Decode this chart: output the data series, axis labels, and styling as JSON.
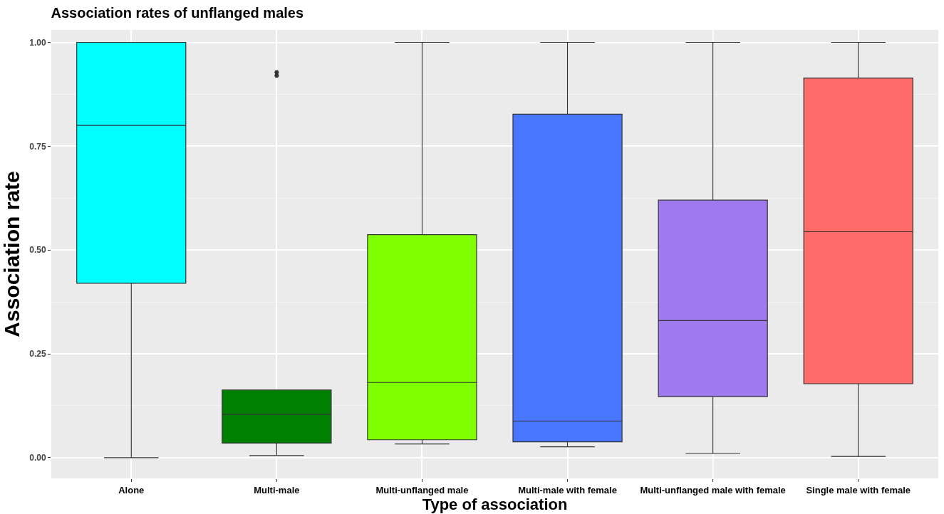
{
  "chart_data": {
    "type": "box",
    "title": "Association rates of unflanged males",
    "xlabel": "Type of association",
    "ylabel": "Association rate",
    "categories": [
      "Alone",
      "Multi-male",
      "Multi-unflanged male",
      "Multi-male with female",
      "Multi-unflanged male with female",
      "Single male with female"
    ],
    "colors": [
      "#00ffff",
      "#008000",
      "#7fff00",
      "#4876ff",
      "#9f79ee",
      "#ff6a6a"
    ],
    "boxes": [
      {
        "low": 0.0,
        "q1": 0.42,
        "median": 0.8,
        "q3": 1.0,
        "high": 1.0
      },
      {
        "low": 0.005,
        "q1": 0.035,
        "median": 0.104,
        "q3": 0.163,
        "high": 0.163,
        "outliers": [
          0.92,
          0.928
        ]
      },
      {
        "low": 0.033,
        "q1": 0.043,
        "median": 0.181,
        "q3": 0.537,
        "high": 1.0
      },
      {
        "low": 0.026,
        "q1": 0.038,
        "median": 0.088,
        "q3": 0.827,
        "high": 1.0
      },
      {
        "low": 0.01,
        "q1": 0.147,
        "median": 0.33,
        "q3": 0.62,
        "high": 1.0
      },
      {
        "low": 0.003,
        "q1": 0.178,
        "median": 0.544,
        "q3": 0.914,
        "high": 1.0
      }
    ],
    "ylim": [
      -0.05,
      1.03
    ],
    "yticks": [
      {
        "value": 0,
        "label": "0.00"
      },
      {
        "value": 0.25,
        "label": "0.25"
      },
      {
        "value": 0.5,
        "label": "0.50"
      },
      {
        "value": 0.75,
        "label": "0.75"
      },
      {
        "value": 1,
        "label": "1.00"
      }
    ],
    "grid": true,
    "legend": false
  }
}
